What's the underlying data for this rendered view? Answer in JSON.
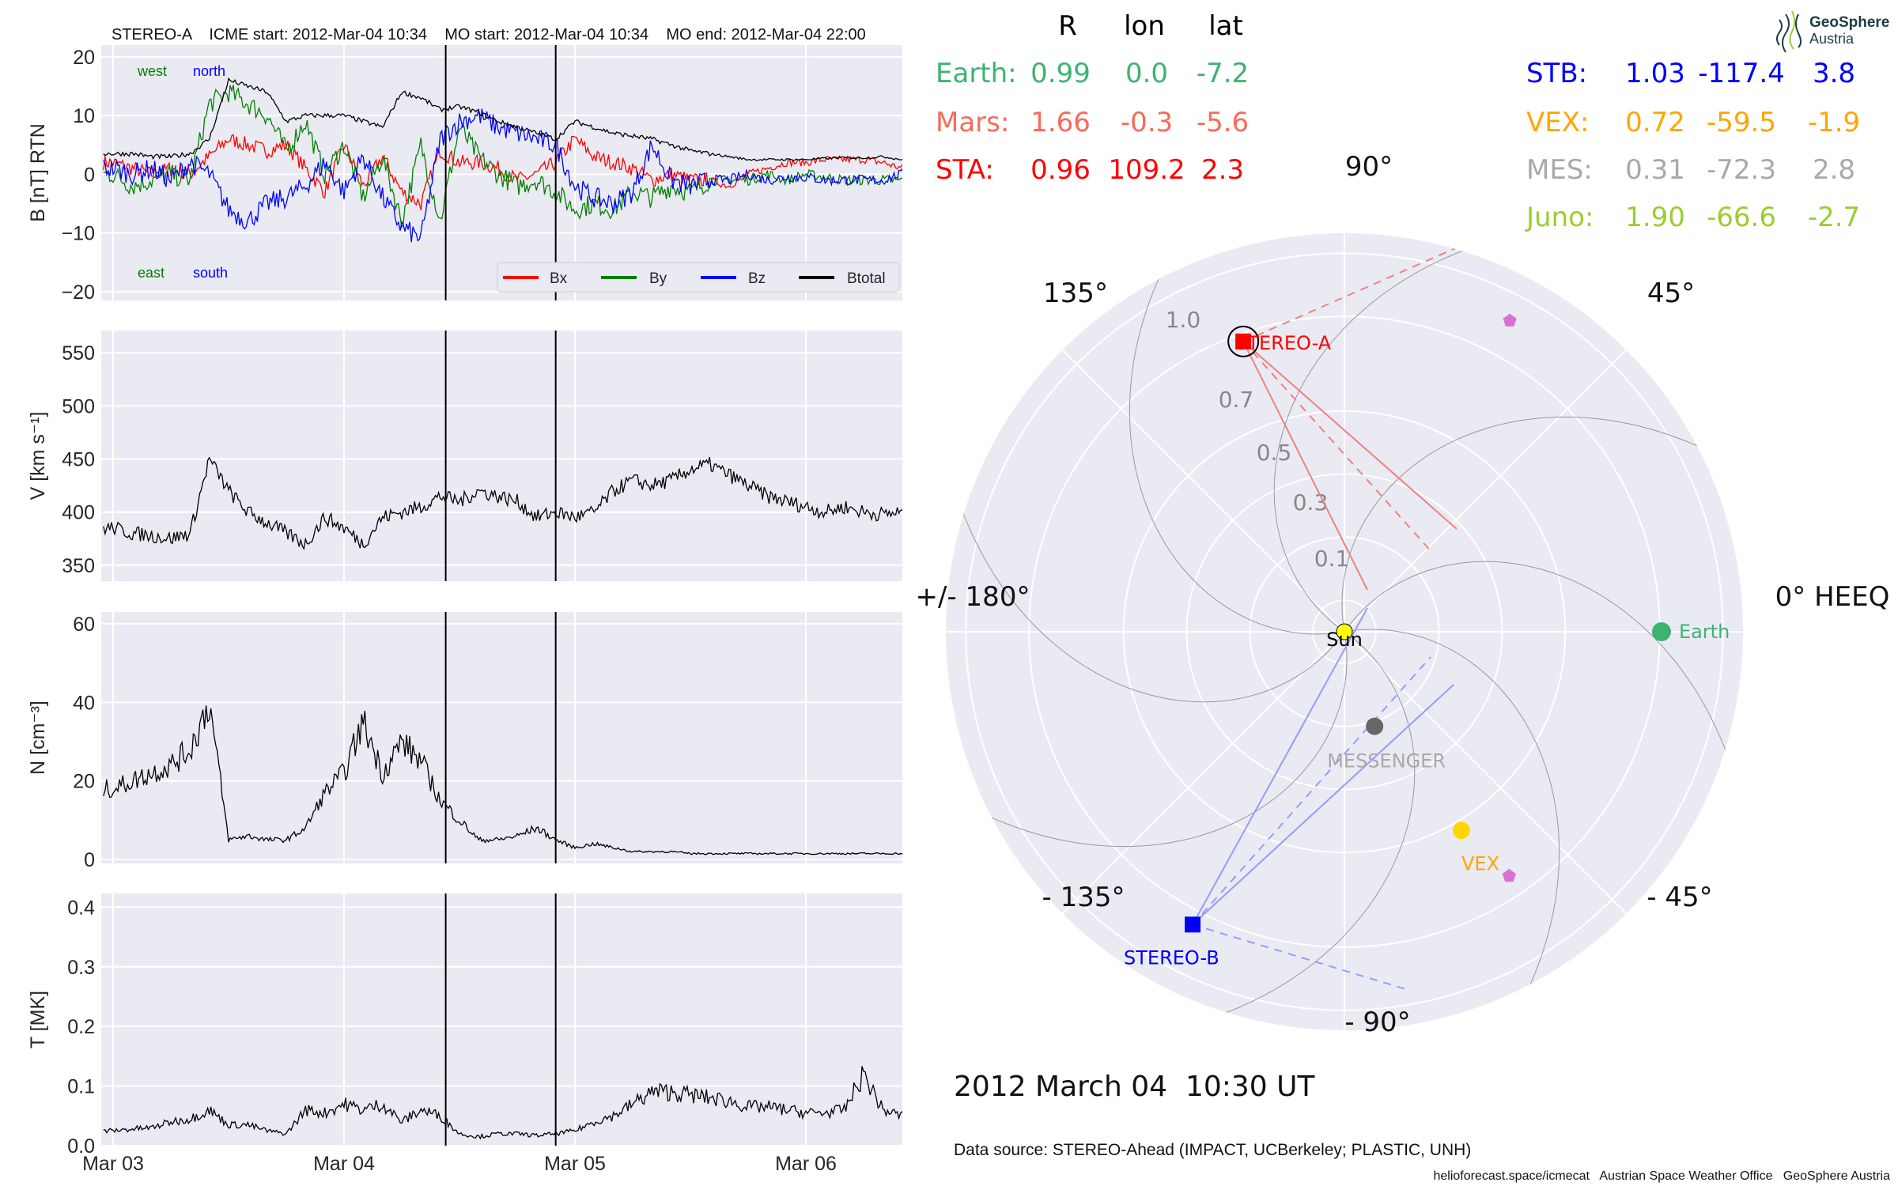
{
  "header": {
    "title": "STEREO-A    ICME start: 2012-Mar-04 10:34    MO start: 2012-Mar-04 10:34    MO end: 2012-Mar-04 22:00"
  },
  "position_table": {
    "col_headers": [
      "R",
      "lon",
      "lat"
    ],
    "left_rows": [
      {
        "name": "Earth:",
        "R": "0.99",
        "lon": "0.0",
        "lat": "-7.2",
        "color": "#3cb371"
      },
      {
        "name": "Mars:",
        "R": "1.66",
        "lon": "-0.3",
        "lat": "-5.6",
        "color": "#fa6a5a"
      },
      {
        "name": "STA:",
        "R": "0.96",
        "lon": "109.2",
        "lat": "2.3",
        "color": "#ff0000"
      }
    ],
    "right_rows": [
      {
        "name": "STB:",
        "R": "1.03",
        "lon": "-117.4",
        "lat": "3.8",
        "color": "#0000ff"
      },
      {
        "name": "VEX:",
        "R": "0.72",
        "lon": "-59.5",
        "lat": "-1.9",
        "color": "#ffa500"
      },
      {
        "name": "MES:",
        "R": "0.31",
        "lon": "-72.3",
        "lat": "2.8",
        "color": "#a9a9a9"
      },
      {
        "name": "Juno:",
        "R": "1.90",
        "lon": "-66.6",
        "lat": "-2.7",
        "color": "#9acd32"
      }
    ]
  },
  "logo": {
    "line1": "GeoSphere",
    "line2": "Austria"
  },
  "date_label": "2012 March 04  10:30 UT",
  "data_source": "Data source: STEREO-Ahead (IMPACT, UCBerkeley; PLASTIC, UNH)",
  "footer": "helioforecast.space/icmecat   Austrian Space Weather Office   GeoSphere Austria",
  "chart_data": [
    {
      "type": "line",
      "title": "STEREO-A    ICME start: 2012-Mar-04 10:34    MO start: 2012-Mar-04 10:34    MO end: 2012-Mar-04 22:00",
      "ylabel": "B [nT] RTN",
      "ylim": [
        -21.5,
        22
      ],
      "yticks": [
        20,
        10,
        0,
        -10,
        -20
      ],
      "ytick_labels": [
        "20",
        "10",
        "0",
        "−10",
        "−20"
      ],
      "annotations": {
        "west": "west",
        "north": "north",
        "east": "east",
        "south": "south"
      },
      "legend": {
        "placement": "lower-right",
        "entries": [
          "Bx",
          "By",
          "Bz",
          "Btotal"
        ]
      },
      "x_hours": [
        0,
        2,
        4,
        6,
        8,
        10,
        12,
        14,
        16,
        18,
        20,
        22,
        24,
        26,
        28,
        30,
        32,
        34,
        36,
        38,
        40,
        42,
        44,
        46,
        48,
        50,
        52,
        54,
        56,
        58,
        60,
        62,
        64,
        66,
        68,
        70,
        72,
        74,
        76,
        78,
        80,
        82
      ],
      "series": [
        {
          "name": "Bx",
          "color": "#ff0000",
          "values": [
            2,
            1,
            0,
            1,
            0,
            3,
            6,
            5,
            4,
            5,
            1,
            -3,
            5,
            -2,
            3,
            -3,
            -5,
            4,
            2,
            2,
            1,
            -1,
            0,
            2,
            6,
            3,
            2,
            1,
            -1,
            0,
            -1,
            -1,
            -2,
            0,
            1,
            2,
            2,
            2.5,
            2.5,
            2.5,
            2,
            1
          ]
        },
        {
          "name": "By",
          "color": "#008000",
          "values": [
            0,
            -2,
            -1,
            0,
            -1,
            12,
            14,
            12,
            10,
            4,
            9,
            0,
            5,
            -4,
            3,
            -8,
            5,
            -8,
            8,
            3,
            0,
            -2,
            -1,
            -3,
            -6,
            -5,
            -6,
            -3,
            -4,
            -2,
            -3,
            -1,
            -1,
            -1,
            0,
            -1,
            0,
            -0.5,
            -1,
            -1,
            -1,
            -1
          ]
        },
        {
          "name": "Bz",
          "color": "#0000ff",
          "values": [
            1,
            0,
            1,
            -1,
            2,
            0,
            -6,
            -8,
            -5,
            -4,
            -2,
            2,
            -3,
            3,
            -4,
            -9,
            -11,
            6,
            9,
            10,
            8,
            7,
            6,
            5,
            -2,
            -4,
            -5,
            -3,
            5,
            -1,
            -2,
            -1,
            -1,
            0,
            -1,
            -0.5,
            -0.5,
            -1,
            -1,
            -1,
            -1,
            0
          ]
        },
        {
          "name": "Btotal",
          "color": "#000000",
          "values": [
            3.5,
            3.5,
            3,
            3,
            3.5,
            6,
            16,
            15,
            14,
            9,
            10,
            10,
            10,
            9,
            8,
            14,
            13,
            11,
            11.5,
            10.5,
            9,
            8,
            7,
            6,
            9,
            8,
            7,
            6.5,
            6,
            5,
            4,
            3.5,
            3,
            2.5,
            2.5,
            2.5,
            2.5,
            2.7,
            2.8,
            2.8,
            3,
            2.5
          ]
        }
      ]
    },
    {
      "type": "line",
      "ylabel": "V [km s⁻¹]",
      "ylim": [
        335,
        571
      ],
      "yticks": [
        550,
        500,
        450,
        400,
        350
      ],
      "ytick_labels": [
        "550",
        "500",
        "450",
        "400",
        "350"
      ],
      "x_hours": [
        0,
        2,
        4,
        6,
        8,
        10,
        12,
        14,
        16,
        18,
        20,
        22,
        24,
        26,
        28,
        30,
        32,
        34,
        36,
        38,
        40,
        42,
        44,
        46,
        48,
        50,
        52,
        54,
        56,
        58,
        60,
        62,
        64,
        66,
        68,
        70,
        72,
        74,
        76,
        78,
        80,
        82
      ],
      "series": [
        {
          "name": "V",
          "color": "#000000",
          "values": [
            385,
            380,
            378,
            375,
            380,
            450,
            420,
            400,
            390,
            380,
            370,
            395,
            385,
            370,
            395,
            400,
            405,
            415,
            410,
            420,
            415,
            410,
            395,
            400,
            395,
            400,
            420,
            430,
            425,
            430,
            440,
            445,
            435,
            425,
            415,
            410,
            405,
            400,
            405,
            400,
            398,
            400
          ]
        }
      ]
    },
    {
      "type": "line",
      "ylabel": "N [cm⁻³]",
      "ylim": [
        -1,
        63
      ],
      "yticks": [
        60,
        40,
        20,
        0
      ],
      "ytick_labels": [
        "60",
        "40",
        "20",
        "0"
      ],
      "x_hours": [
        0,
        2,
        4,
        6,
        8,
        10,
        12,
        14,
        16,
        18,
        20,
        22,
        24,
        26,
        28,
        30,
        32,
        34,
        36,
        38,
        40,
        42,
        44,
        46,
        48,
        50,
        52,
        54,
        56,
        58,
        60,
        62,
        64,
        66,
        68,
        70,
        72,
        74,
        76,
        78,
        80,
        82
      ],
      "series": [
        {
          "name": "N",
          "color": "#000000",
          "values": [
            18,
            20,
            22,
            24,
            28,
            40,
            5,
            6,
            5,
            5,
            8,
            17,
            22,
            35,
            22,
            30,
            25,
            15,
            10,
            5,
            5,
            6,
            8,
            5,
            3,
            4,
            3,
            2,
            2,
            2,
            1.5,
            1.5,
            1.5,
            1.5,
            1.5,
            1.5,
            1.5,
            1.5,
            1.5,
            1.5,
            1.5,
            1.5
          ]
        }
      ]
    },
    {
      "type": "line",
      "ylabel": "T [MK]",
      "ylim": [
        0,
        0.423
      ],
      "yticks": [
        0.4,
        0.3,
        0.2,
        0.1,
        0.0
      ],
      "ytick_labels": [
        "0.4",
        "0.3",
        "0.2",
        "0.1",
        "0.0"
      ],
      "xtick_labels": [
        "Mar 03",
        "Mar 04",
        "Mar 05",
        "Mar 06"
      ],
      "x_hours": [
        0,
        2,
        4,
        6,
        8,
        10,
        12,
        14,
        16,
        18,
        20,
        22,
        24,
        26,
        28,
        30,
        32,
        34,
        36,
        38,
        40,
        42,
        44,
        46,
        48,
        50,
        52,
        54,
        56,
        58,
        60,
        62,
        64,
        66,
        68,
        70,
        72,
        74,
        76,
        78,
        80,
        82
      ],
      "series": [
        {
          "name": "T",
          "color": "#000000",
          "values": [
            0.025,
            0.028,
            0.03,
            0.04,
            0.045,
            0.06,
            0.035,
            0.035,
            0.025,
            0.02,
            0.06,
            0.055,
            0.07,
            0.06,
            0.07,
            0.04,
            0.06,
            0.05,
            0.02,
            0.015,
            0.02,
            0.02,
            0.017,
            0.02,
            0.025,
            0.04,
            0.05,
            0.07,
            0.09,
            0.09,
            0.085,
            0.08,
            0.075,
            0.065,
            0.065,
            0.06,
            0.055,
            0.055,
            0.06,
            0.12,
            0.06,
            0.05
          ]
        }
      ]
    },
    {
      "type": "scatter",
      "subtype": "polar",
      "angle_labels": {
        "a90": "90°",
        "a45": "45°",
        "a135": "135°",
        "a180": "+/- 180°",
        "a0": "0° HEEQ",
        "am45": "- 45°",
        "am135": "- 135°",
        "am90": "- 90°"
      },
      "radial_ticks": [
        0.1,
        0.3,
        0.5,
        0.7,
        1.0
      ],
      "radial_tick_labels": [
        "0.1",
        "0.3",
        "0.5",
        "0.7",
        "1.0"
      ],
      "rmax": 1.26,
      "bodies": [
        {
          "name": "Sun",
          "r": 0,
          "lon": 0,
          "color": "#ffff00",
          "label_color": "#000000"
        },
        {
          "name": "Earth",
          "r": 0.99,
          "lon": 0.0,
          "color": "#3cb371",
          "label_color": "#3cb371"
        },
        {
          "name": "STEREO-A",
          "r": 0.96,
          "lon": 109.2,
          "color": "#ff0000",
          "label_color": "#ff0000"
        },
        {
          "name": "STEREO-B",
          "r": 1.03,
          "lon": -117.4,
          "color": "#0000ff",
          "label_color": "#0000ff"
        },
        {
          "name": "VEX",
          "r": 0.72,
          "lon": -59.5,
          "color": "#ffd700",
          "label_color": "#ffa500"
        },
        {
          "name": "MESSENGER",
          "r": 0.31,
          "lon": -72.3,
          "color": "#666666",
          "label_color": "#a9a9a9"
        }
      ],
      "unlabeled_markers": [
        {
          "r": 1.1,
          "lon": 62,
          "color": "#da70d6"
        },
        {
          "r": 0.92,
          "lon": -56,
          "color": "#da70d6"
        }
      ]
    }
  ]
}
